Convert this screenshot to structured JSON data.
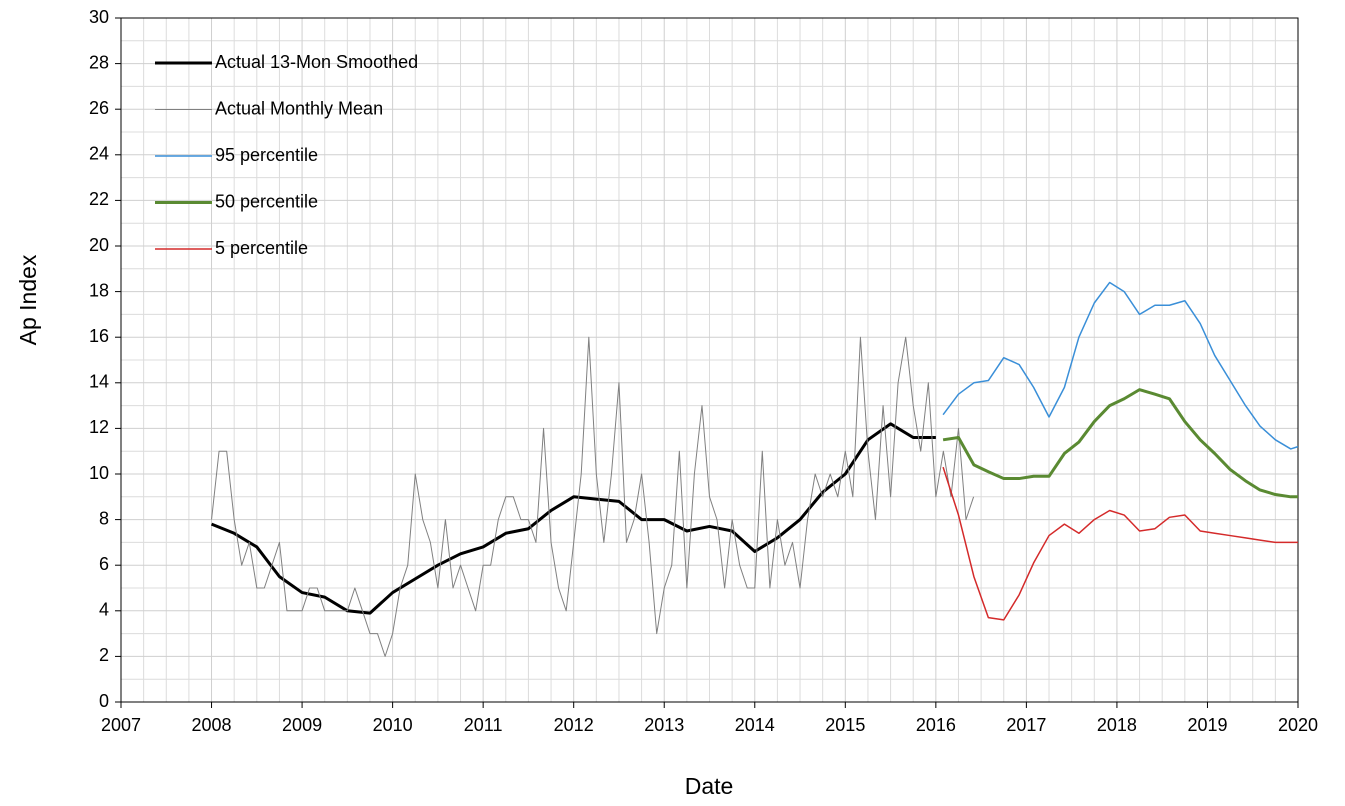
{
  "chart_data": {
    "type": "line",
    "xlabel": "Date",
    "ylabel": "Ap Index",
    "xlim": [
      2007,
      2020
    ],
    "xticks": [
      2007,
      2008,
      2009,
      2010,
      2011,
      2012,
      2013,
      2014,
      2015,
      2016,
      2017,
      2018,
      2019,
      2020
    ],
    "ylim": [
      0,
      30
    ],
    "yticks": [
      0,
      2,
      4,
      6,
      8,
      10,
      12,
      14,
      16,
      18,
      20,
      22,
      24,
      26,
      28,
      30
    ],
    "grid": true,
    "legend": "upper left",
    "series": [
      {
        "name": "Actual 13-Mon Smoothed",
        "color": "#000000",
        "width": 3,
        "x": [
          2008,
          2008.25,
          2008.5,
          2008.75,
          2009,
          2009.25,
          2009.5,
          2009.75,
          2010,
          2010.25,
          2010.5,
          2010.75,
          2011,
          2011.25,
          2011.5,
          2011.75,
          2012,
          2012.25,
          2012.5,
          2012.75,
          2013,
          2013.25,
          2013.5,
          2013.75,
          2014,
          2014.25,
          2014.5,
          2014.75,
          2015,
          2015.25,
          2015.5,
          2015.75,
          2016
        ],
        "values": [
          7.8,
          7.4,
          6.8,
          5.5,
          4.8,
          4.6,
          4.0,
          3.9,
          4.8,
          5.4,
          6.0,
          6.5,
          6.8,
          7.4,
          7.6,
          8.4,
          9.0,
          8.9,
          8.8,
          8.0,
          8.0,
          7.5,
          7.7,
          7.5,
          6.6,
          7.2,
          8.0,
          9.2,
          10.0,
          11.5,
          12.2,
          11.6,
          11.6
        ]
      },
      {
        "name": "Actual Monthly Mean",
        "color": "#808080",
        "width": 1,
        "x": [
          2008,
          2008.083,
          2008.167,
          2008.25,
          2008.333,
          2008.417,
          2008.5,
          2008.583,
          2008.667,
          2008.75,
          2008.833,
          2008.917,
          2009,
          2009.083,
          2009.167,
          2009.25,
          2009.333,
          2009.417,
          2009.5,
          2009.583,
          2009.667,
          2009.75,
          2009.833,
          2009.917,
          2010,
          2010.083,
          2010.167,
          2010.25,
          2010.333,
          2010.417,
          2010.5,
          2010.583,
          2010.667,
          2010.75,
          2010.833,
          2010.917,
          2011,
          2011.083,
          2011.167,
          2011.25,
          2011.333,
          2011.417,
          2011.5,
          2011.583,
          2011.667,
          2011.75,
          2011.833,
          2011.917,
          2012,
          2012.083,
          2012.167,
          2012.25,
          2012.333,
          2012.417,
          2012.5,
          2012.583,
          2012.667,
          2012.75,
          2012.833,
          2012.917,
          2013,
          2013.083,
          2013.167,
          2013.25,
          2013.333,
          2013.417,
          2013.5,
          2013.583,
          2013.667,
          2013.75,
          2013.833,
          2013.917,
          2014,
          2014.083,
          2014.167,
          2014.25,
          2014.333,
          2014.417,
          2014.5,
          2014.583,
          2014.667,
          2014.75,
          2014.833,
          2014.917,
          2015,
          2015.083,
          2015.167,
          2015.25,
          2015.333,
          2015.417,
          2015.5,
          2015.583,
          2015.667,
          2015.75,
          2015.833,
          2015.917,
          2016,
          2016.083,
          2016.167,
          2016.25,
          2016.333,
          2016.417
        ],
        "values": [
          8,
          11,
          11,
          8,
          6,
          7,
          5,
          5,
          6,
          7,
          4,
          4,
          4,
          5,
          5,
          4,
          4,
          4,
          4,
          5,
          4,
          3,
          3,
          2,
          3,
          5,
          6,
          10,
          8,
          7,
          5,
          8,
          5,
          6,
          5,
          4,
          6,
          6,
          8,
          9,
          9,
          8,
          8,
          7,
          12,
          7,
          5,
          4,
          7,
          10,
          16,
          10,
          7,
          10,
          14,
          7,
          8,
          10,
          7,
          3,
          5,
          6,
          11,
          5,
          10,
          13,
          9,
          8,
          5,
          8,
          6,
          5,
          5,
          11,
          5,
          8,
          6,
          7,
          5,
          8,
          10,
          9,
          10,
          9,
          11,
          9,
          16,
          11,
          8,
          13,
          9,
          14,
          16,
          13,
          11,
          14,
          9,
          11,
          9,
          12,
          8,
          9
        ]
      },
      {
        "name": "95 percentile",
        "color": "#3a8fd8",
        "width": 1.5,
        "x": [
          2016.08,
          2016.25,
          2016.42,
          2016.58,
          2016.75,
          2016.92,
          2017.08,
          2017.25,
          2017.42,
          2017.58,
          2017.75,
          2017.92,
          2018.08,
          2018.25,
          2018.42,
          2018.58,
          2018.75,
          2018.92,
          2019.08,
          2019.25,
          2019.42,
          2019.58,
          2019.75,
          2019.92,
          2020
        ],
        "values": [
          12.6,
          13.5,
          14.0,
          14.1,
          15.1,
          14.8,
          13.8,
          12.5,
          13.8,
          16.0,
          17.5,
          18.4,
          18.0,
          17.0,
          17.4,
          17.4,
          17.6,
          16.6,
          15.2,
          14.1,
          13.0,
          12.1,
          11.5,
          11.1,
          11.2
        ]
      },
      {
        "name": "50 percentile",
        "color": "#5a8a32",
        "width": 3,
        "x": [
          2016.08,
          2016.25,
          2016.42,
          2016.58,
          2016.75,
          2016.92,
          2017.08,
          2017.25,
          2017.42,
          2017.58,
          2017.75,
          2017.92,
          2018.08,
          2018.25,
          2018.42,
          2018.58,
          2018.75,
          2018.92,
          2019.08,
          2019.25,
          2019.42,
          2019.58,
          2019.75,
          2019.92,
          2020
        ],
        "values": [
          11.5,
          11.6,
          10.4,
          10.1,
          9.8,
          9.8,
          9.9,
          9.9,
          10.9,
          11.4,
          12.3,
          13.0,
          13.3,
          13.7,
          13.5,
          13.3,
          12.3,
          11.5,
          10.9,
          10.2,
          9.7,
          9.3,
          9.1,
          9.0,
          9.0
        ]
      },
      {
        "name": "5 percentile",
        "color": "#d42a2a",
        "width": 1.5,
        "x": [
          2016.08,
          2016.25,
          2016.42,
          2016.58,
          2016.75,
          2016.92,
          2017.08,
          2017.25,
          2017.42,
          2017.58,
          2017.75,
          2017.92,
          2018.08,
          2018.25,
          2018.42,
          2018.58,
          2018.75,
          2018.92,
          2019.08,
          2019.25,
          2019.42,
          2019.58,
          2019.75,
          2019.92,
          2020
        ],
        "values": [
          10.3,
          8.2,
          5.5,
          3.7,
          3.6,
          4.7,
          6.1,
          7.3,
          7.8,
          7.4,
          8.0,
          8.4,
          8.2,
          7.5,
          7.6,
          8.1,
          8.2,
          7.5,
          7.4,
          7.3,
          7.2,
          7.1,
          7.0,
          7.0,
          7.0
        ]
      }
    ]
  }
}
